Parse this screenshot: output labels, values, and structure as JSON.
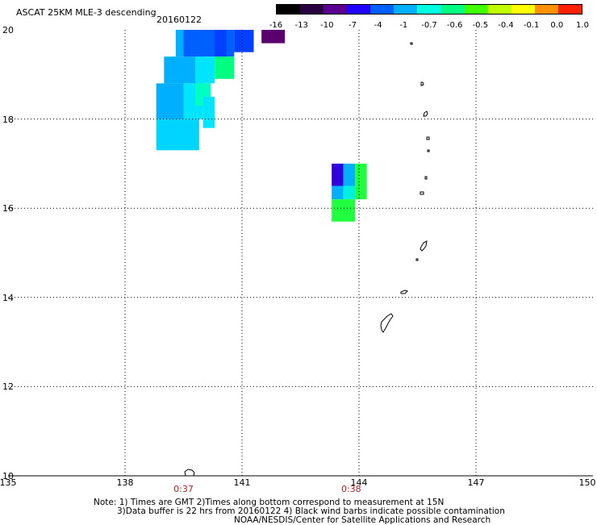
{
  "header": {
    "title": "ASCAT 25KM MLE-3 descending",
    "date": "20160122"
  },
  "colorbar": {
    "labels": [
      "-16",
      "-13",
      "-10",
      "-7",
      "-4",
      "-1",
      "-0.7",
      "-0.6",
      "-0.5",
      "-0.4",
      "-0.1",
      "0.0",
      "1.0"
    ],
    "colors": [
      "#000000",
      "#2a0040",
      "#5a0090",
      "#2000ff",
      "#0060ff",
      "#00b0ff",
      "#00ffe0",
      "#00ff80",
      "#40ff00",
      "#c0ff00",
      "#ffff00",
      "#ff9000",
      "#ff2000"
    ]
  },
  "map": {
    "lon_range": [
      135,
      150
    ],
    "lat_range": [
      10,
      20
    ],
    "lon_ticks": [
      "135",
      "138",
      "141",
      "144",
      "147",
      "150"
    ],
    "lat_ticks": [
      "10",
      "12",
      "14",
      "16",
      "18",
      "20"
    ],
    "time_labels": [
      {
        "lon": 139.5,
        "text": "0:37"
      },
      {
        "lon": 143.8,
        "text": "0:38"
      }
    ],
    "cells": [
      {
        "lon0": 139.3,
        "lat0": 19.4,
        "lon1": 139.8,
        "lat1": 20.0,
        "value": "-4",
        "color": "#00b0ff"
      },
      {
        "lon0": 139.5,
        "lat0": 19.4,
        "lon1": 140.8,
        "lat1": 20.0,
        "value": "-7",
        "color": "#0060ff"
      },
      {
        "lon0": 140.8,
        "lat0": 19.5,
        "lon1": 141.3,
        "lat1": 20.0,
        "value": "-10",
        "color": "#0040ff"
      },
      {
        "lon0": 140.3,
        "lat0": 19.4,
        "lon1": 140.6,
        "lat1": 20.0,
        "value": "-10",
        "color": "#0040ff"
      },
      {
        "lon0": 141.5,
        "lat0": 19.7,
        "lon1": 142.1,
        "lat1": 20.0,
        "value": "-13",
        "color": "#5a006e"
      },
      {
        "lon0": 139.0,
        "lat0": 18.8,
        "lon1": 140.0,
        "lat1": 19.4,
        "value": "-4",
        "color": "#00b0ff"
      },
      {
        "lon0": 139.8,
        "lat0": 18.8,
        "lon1": 140.3,
        "lat1": 19.4,
        "value": "-1",
        "color": "#00e5ff"
      },
      {
        "lon0": 140.3,
        "lat0": 18.9,
        "lon1": 140.8,
        "lat1": 19.4,
        "value": "-0.6",
        "color": "#00ff80"
      },
      {
        "lon0": 138.8,
        "lat0": 18.0,
        "lon1": 139.5,
        "lat1": 18.8,
        "value": "-4",
        "color": "#00b0ff"
      },
      {
        "lon0": 139.5,
        "lat0": 18.0,
        "lon1": 140.0,
        "lat1": 18.8,
        "value": "-1",
        "color": "#00e5ff"
      },
      {
        "lon0": 139.8,
        "lat0": 18.3,
        "lon1": 140.2,
        "lat1": 18.8,
        "value": "-0.7",
        "color": "#00ffc0"
      },
      {
        "lon0": 140.0,
        "lat0": 17.8,
        "lon1": 140.3,
        "lat1": 18.5,
        "value": "-1",
        "color": "#00e5ff"
      },
      {
        "lon0": 138.8,
        "lat0": 17.3,
        "lon1": 139.9,
        "lat1": 18.0,
        "value": "-1",
        "color": "#00d5ff"
      },
      {
        "lon0": 143.3,
        "lat0": 16.5,
        "lon1": 143.6,
        "lat1": 17.0,
        "value": "-10",
        "color": "#3000e0"
      },
      {
        "lon0": 143.6,
        "lat0": 16.5,
        "lon1": 143.9,
        "lat1": 17.0,
        "value": "-4",
        "color": "#00b0ff"
      },
      {
        "lon0": 143.9,
        "lat0": 16.2,
        "lon1": 144.2,
        "lat1": 17.0,
        "value": "-0.5",
        "color": "#20ff40"
      },
      {
        "lon0": 143.3,
        "lat0": 16.2,
        "lon1": 143.6,
        "lat1": 16.5,
        "value": "-4",
        "color": "#00b0ff"
      },
      {
        "lon0": 143.6,
        "lat0": 16.2,
        "lon1": 143.9,
        "lat1": 16.5,
        "value": "-1",
        "color": "#00f0e0"
      },
      {
        "lon0": 143.3,
        "lat0": 15.7,
        "lon1": 143.9,
        "lat1": 16.2,
        "value": "-0.5",
        "color": "#20ff40"
      }
    ]
  },
  "notes": {
    "line1": "Note: 1) Times are GMT 2)Times along bottom correspond to measurement at 15N",
    "line2": "3)Data buffer is 22 hrs from 20160122 4) Black wind barbs indicate possible contamination",
    "line3": "NOAA/NESDIS/Center for Satellite Applications and Research"
  }
}
